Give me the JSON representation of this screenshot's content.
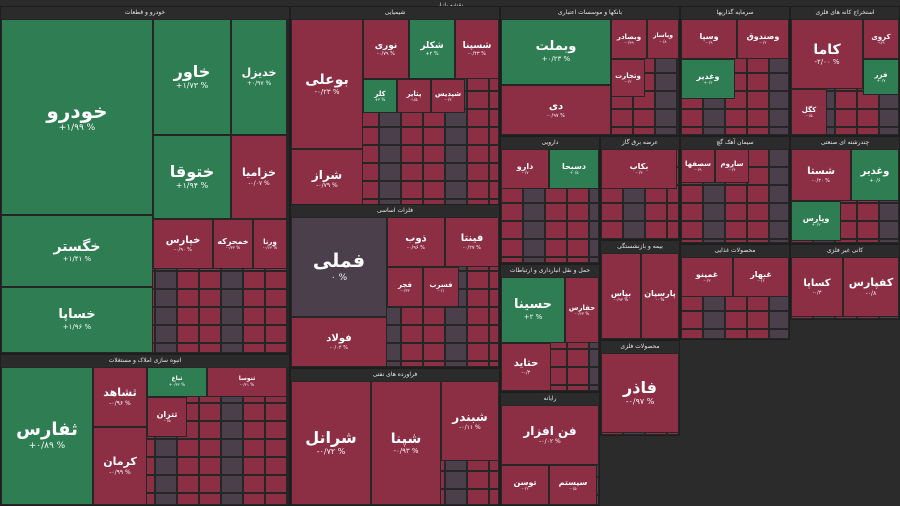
{
  "map_title": "نقشه بازار",
  "colors": {
    "positive": "#2f7d53",
    "negative": "#8c2f45",
    "neutral": "#4b3f4c",
    "strong_negative": "#b3202c",
    "background": "#2b2b2b"
  },
  "chart_data": {
    "type": "treemap",
    "title": "نقشه بازار",
    "sectors": [
      {
        "name": "خودرو و قطعات",
        "tiles": [
          {
            "symbol": "خودرو",
            "change": "+۱/۹۹ %"
          },
          {
            "symbol": "خاور",
            "change": "+۱/۷۳ %"
          },
          {
            "symbol": "خدیزل",
            "change": "+۰/۹۷ %"
          },
          {
            "symbol": "ختوقا",
            "change": "+۱/۹۴ %"
          },
          {
            "symbol": "خزامیا",
            "change": "-۰/۰۷ %"
          },
          {
            "symbol": "خگستر",
            "change": "+۱/۴۱ %"
          },
          {
            "symbol": "خساپا",
            "change": "+۱/۹۶ %"
          },
          {
            "symbol": "خپارس",
            "change": "-۰/۹۰ %"
          },
          {
            "symbol": "خمحرکه",
            "change": "-۰/۳۳ %"
          },
          {
            "symbol": "ورنا",
            "change": "-۰/۶۳ %"
          }
        ]
      },
      {
        "name": "شیمیایی",
        "tiles": [
          {
            "symbol": "بوعلی",
            "change": "-۰/۲۳ %"
          },
          {
            "symbol": "شراز",
            "change": "-۰/۷۹ %"
          },
          {
            "symbol": "نوری",
            "change": "-۰/۷۹ %"
          },
          {
            "symbol": "شکلر",
            "change": "+۲ %"
          },
          {
            "symbol": "شسپنا",
            "change": "-۰/۴۳ %"
          },
          {
            "symbol": "کلر",
            "change": "+۳ %"
          },
          {
            "symbol": "پتایر",
            "change": "-۱/۵"
          },
          {
            "symbol": "شپدیس",
            "change": "-۰/۴"
          }
        ]
      },
      {
        "name": "بانکها و موسسات اعتباری",
        "tiles": [
          {
            "symbol": "وبملت",
            "change": "+۰/۲۳ %"
          },
          {
            "symbol": "دی",
            "change": "-۰/۹۷ %"
          },
          {
            "symbol": "وبصادر",
            "change": "-۰/۴۹"
          },
          {
            "symbol": "وپاسار",
            "change": "-۰/۸"
          },
          {
            "symbol": "وتجارت",
            "change": "-۰/۲"
          }
        ]
      },
      {
        "name": "استخراج کانه های فلزی",
        "tiles": [
          {
            "symbol": "کاما",
            "change": "-۲/۰۰ %"
          },
          {
            "symbol": "کروی",
            "change": "-۱/۹"
          },
          {
            "symbol": "فزر",
            "change": "+۰/۷"
          },
          {
            "symbol": "کگل",
            "change": "-۰/۵"
          }
        ]
      },
      {
        "name": "سرمایه گذاریها",
        "tiles": [
          {
            "symbol": "وسپا",
            "change": "-۰/۹"
          },
          {
            "symbol": "وصندوق",
            "change": "-۰/۲"
          },
          {
            "symbol": "وغدیر",
            "change": "+۰/۴"
          }
        ]
      },
      {
        "name": "فلزات اساسی",
        "tiles": [
          {
            "symbol": "فملی",
            "change": "۰ %"
          },
          {
            "symbol": "ذوب",
            "change": "-۰/۹۶ %"
          },
          {
            "symbol": "فولاد",
            "change": "-۰/۰۴ %"
          },
          {
            "symbol": "فینتا",
            "change": "-۰/۲۷ %"
          },
          {
            "symbol": "فجر",
            "change": "-۰/۳۳"
          },
          {
            "symbol": "فسرب",
            "change": "-۰/۱"
          }
        ]
      },
      {
        "name": "حمل و نقل انبارداری و ارتباطات",
        "tiles": [
          {
            "symbol": "حسینا",
            "change": "+۲ %"
          },
          {
            "symbol": "حفارس",
            "change": "-۰/۶۳ %"
          },
          {
            "symbol": "حتاید",
            "change": "-۰/۴"
          }
        ]
      },
      {
        "name": "انبوه سازی املاک و مستغلات",
        "tiles": [
          {
            "symbol": "ثفارس",
            "change": "+۰/۸۹ %"
          },
          {
            "symbol": "ثشاهد",
            "change": "-۰/۹۶ %"
          },
          {
            "symbol": "ثباغ",
            "change": "+۰/۳۲ %"
          },
          {
            "symbol": "ثنوسا",
            "change": "-۰/۲۱ %"
          },
          {
            "symbol": "کرمان",
            "change": "-۰/۹۹ %"
          },
          {
            "symbol": "ثتران",
            "change": "-۰/۵"
          }
        ]
      },
      {
        "name": "فراورده های نفتی",
        "tiles": [
          {
            "symbol": "شرانل",
            "change": "-۰/۷۲ %"
          },
          {
            "symbol": "شپنا",
            "change": "-۰/۹۳ %"
          },
          {
            "symbol": "شبندر",
            "change": "-۰/۱۱ %"
          }
        ]
      },
      {
        "name": "رایانه",
        "tiles": [
          {
            "symbol": "فن افزار",
            "change": "-۰/۰۲ %"
          },
          {
            "symbol": "توسن",
            "change": "-۰/۳"
          },
          {
            "symbol": "سیستم",
            "change": "-۰/۵"
          }
        ]
      },
      {
        "name": "محصولات فلزی",
        "tiles": [
          {
            "symbol": "فاذر",
            "change": "-۰/۹۷ %"
          }
        ]
      },
      {
        "name": "بیمه و بازنشستگی",
        "tiles": [
          {
            "symbol": "بپاس",
            "change": "-۰/۹۳ %"
          },
          {
            "symbol": "پارسیان",
            "change": "-۰ %"
          }
        ]
      },
      {
        "name": "سیمان آهک گچ",
        "tiles": [
          {
            "symbol": "سصفها",
            "change": "-۰/۹"
          },
          {
            "symbol": "ساروم",
            "change": "-۰/۴"
          }
        ]
      },
      {
        "name": "چندرشته ای صنعتی",
        "tiles": [
          {
            "symbol": "شستا",
            "change": "-۰/۲۰ %"
          },
          {
            "symbol": "وغدیر",
            "change": "+۰/۶"
          },
          {
            "symbol": "وپارس",
            "change": "+۰/۳"
          }
        ]
      },
      {
        "name": "کانی غیر فلزی",
        "tiles": [
          {
            "symbol": "کساپا",
            "change": "-۰/۳"
          },
          {
            "symbol": "کفپارس",
            "change": "-۰/۸"
          }
        ]
      },
      {
        "name": "محصولات غذایی",
        "tiles": [
          {
            "symbol": "غمینو",
            "change": "-۰/۳"
          },
          {
            "symbol": "غبهار",
            "change": "-۰/۶"
          }
        ]
      },
      {
        "name": "دارویی",
        "tiles": [
          {
            "symbol": "دارو",
            "change": "-۰/۷"
          },
          {
            "symbol": "دسبحا",
            "change": "+۰/۵"
          }
        ]
      },
      {
        "name": "عرضه برق گاز",
        "tiles": [
          {
            "symbol": "بکاب",
            "change": "-۰/۳"
          }
        ]
      }
    ]
  }
}
